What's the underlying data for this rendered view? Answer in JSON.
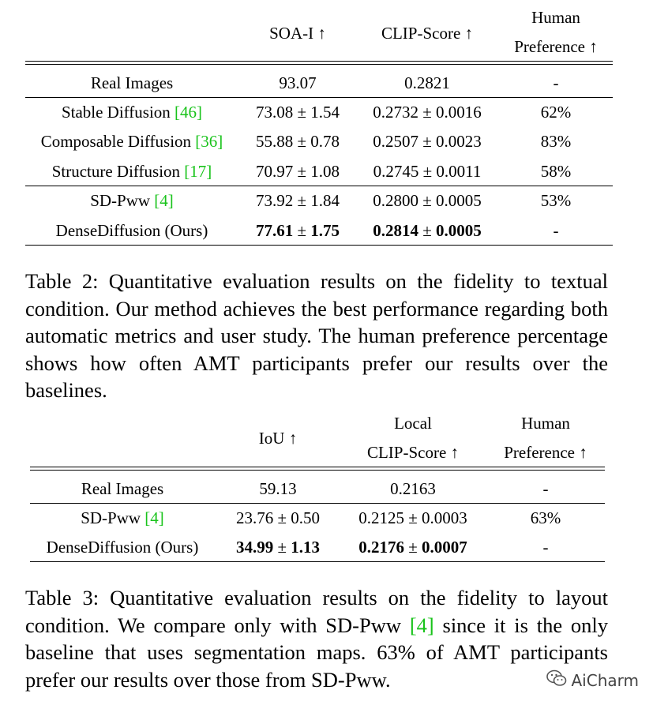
{
  "table2": {
    "headers": {
      "soa": "SOA-I ↑",
      "clip": "CLIP-Score ↑",
      "human_line1": "Human",
      "human_line2": "Preference ↑"
    },
    "rows": [
      {
        "method": "Real Images",
        "cite": "",
        "soa": "93.07",
        "clip": "0.2821",
        "human": "-"
      },
      {
        "method": "Stable Diffusion ",
        "cite": "[46]",
        "soa": "73.08 ± 1.54",
        "clip": "0.2732 ± 0.0016",
        "human": "62%"
      },
      {
        "method": "Composable Diffusion ",
        "cite": "[36]",
        "soa": "55.88 ± 0.78",
        "clip": "0.2507 ± 0.0023",
        "human": "83%"
      },
      {
        "method": "Structure Diffusion ",
        "cite": "[17]",
        "soa": "70.97 ± 1.08",
        "clip": "0.2745 ± 0.0011",
        "human": "58%"
      },
      {
        "method": "SD-Pww ",
        "cite": "[4]",
        "soa": "73.92 ± 1.84",
        "clip": "0.2800 ± 0.0005",
        "human": "53%"
      },
      {
        "method": "DenseDiffusion (Ours)",
        "cite": "",
        "soa_bold_a": "77.61",
        "soa_pm": " ± ",
        "soa_bold_b": "1.75",
        "clip_bold_a": "0.2814",
        "clip_pm": " ± ",
        "clip_bold_b": "0.0005",
        "human": "-"
      }
    ],
    "caption": "Table 2: Quantitative evaluation results on the fidelity to textual condition. Our method achieves the best performance regarding both automatic metrics and user study. The human preference percentage shows how often AMT participants prefer our results over the baselines."
  },
  "table3": {
    "headers": {
      "iou": "IoU ↑",
      "local_line1": "Local",
      "local_line2": "CLIP-Score ↑",
      "human_line1": "Human",
      "human_line2": "Preference ↑"
    },
    "rows": [
      {
        "method": "Real Images",
        "cite": "",
        "iou": "59.13",
        "clip": "0.2163",
        "human": "-"
      },
      {
        "method": "SD-Pww ",
        "cite": "[4]",
        "iou": "23.76 ± 0.50",
        "clip": "0.2125 ± 0.0003",
        "human": "63%"
      },
      {
        "method": "DenseDiffusion (Ours)",
        "cite": "",
        "iou_bold_a": "34.99",
        "iou_pm": " ± ",
        "iou_bold_b": "1.13",
        "clip_bold_a": "0.2176",
        "clip_pm": " ± ",
        "clip_bold_b": "0.0007",
        "human": "-"
      }
    ],
    "caption_pre": "Table 3: Quantitative evaluation results on the fidelity to layout condition. We compare only with SD-Pww ",
    "caption_cite": "[4]",
    "caption_post": " since it is the only baseline that uses segmentation maps. 63% of AMT participants prefer our results over those from SD-Pww."
  },
  "watermark": {
    "icon": "wechat-icon",
    "text": "AiCharm"
  }
}
